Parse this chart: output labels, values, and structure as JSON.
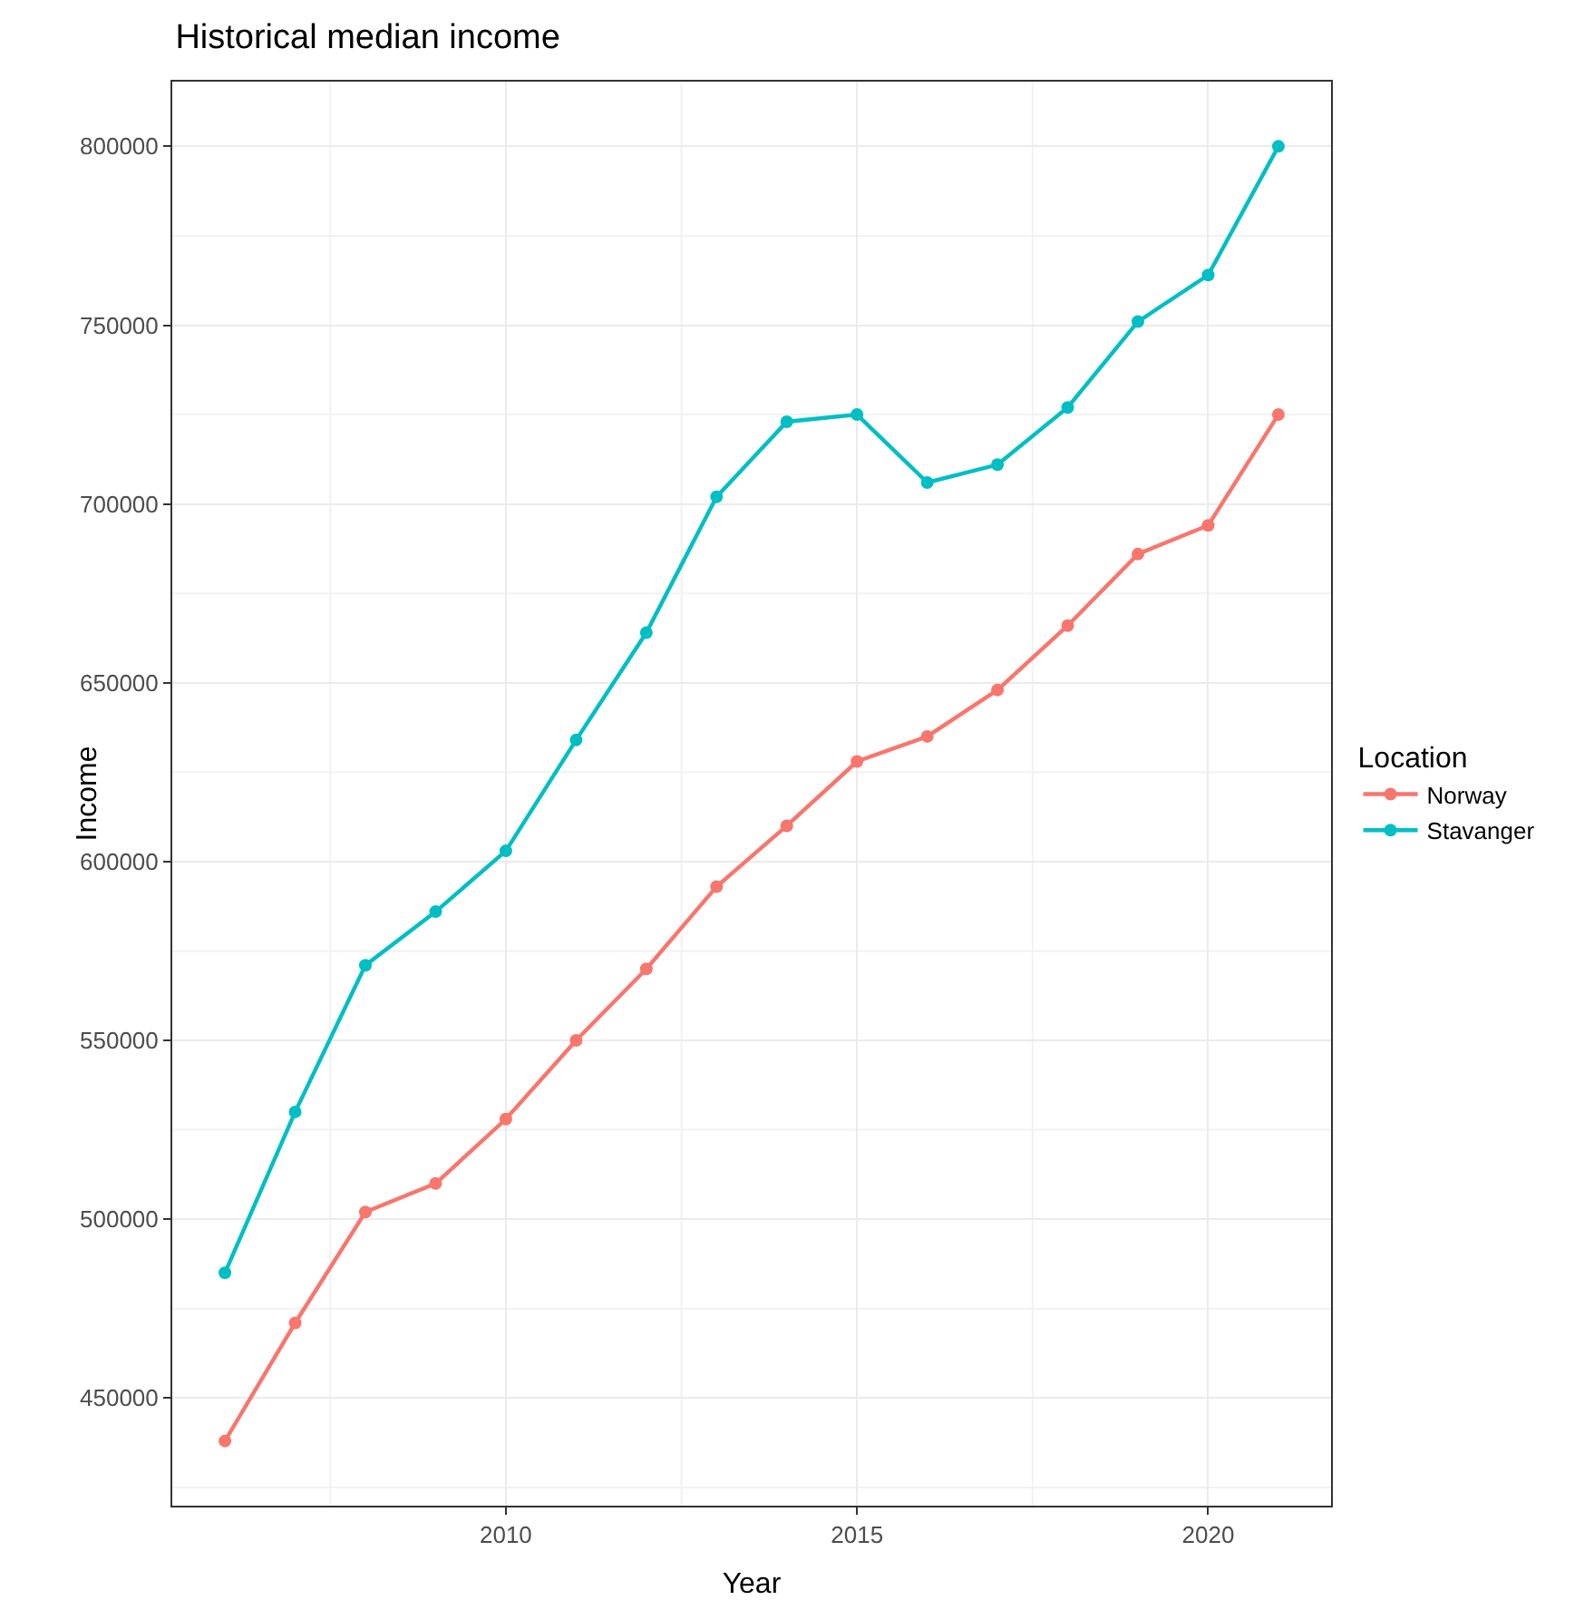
{
  "chart_data": {
    "type": "line",
    "title": "Historical median income",
    "xlabel": "Year",
    "ylabel": "Income",
    "legend_title": "Location",
    "x": [
      2006,
      2007,
      2008,
      2009,
      2010,
      2011,
      2012,
      2013,
      2014,
      2015,
      2016,
      2017,
      2018,
      2019,
      2020,
      2021
    ],
    "series": [
      {
        "name": "Norway",
        "color": "#f8766d",
        "values": [
          438000,
          471000,
          502000,
          510000,
          528000,
          550000,
          570000,
          593000,
          610000,
          628000,
          635000,
          648000,
          666000,
          686000,
          694000,
          725000
        ]
      },
      {
        "name": "Stavanger",
        "color": "#00bfc4",
        "values": [
          485000,
          530000,
          571000,
          586000,
          603000,
          634000,
          664000,
          702000,
          723000,
          725000,
          706000,
          711000,
          727000,
          751000,
          764000,
          800000
        ]
      }
    ],
    "xlim": [
      2005.25,
      2021.75
    ],
    "xticks": [
      2010,
      2015,
      2020
    ],
    "ylim": [
      419900,
      818100
    ],
    "yticks": [
      450000,
      500000,
      550000,
      600000,
      650000,
      700000,
      750000,
      800000
    ],
    "grid": true,
    "legend": "right",
    "marker": "circle",
    "line_style": "solid"
  }
}
